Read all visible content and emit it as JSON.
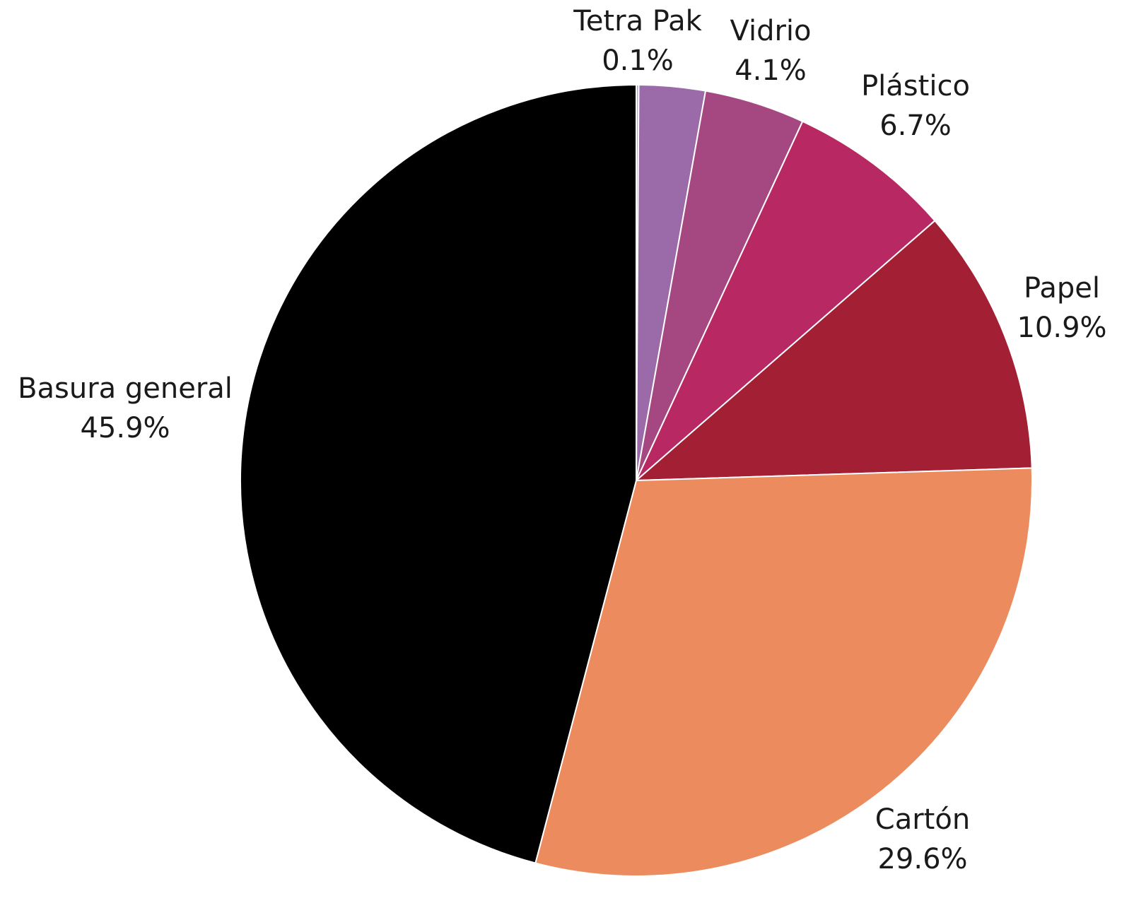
{
  "chart_data": {
    "type": "pie",
    "categories": [
      "Tetra Pak",
      null,
      "Vidrio",
      "Plástico",
      "Papel",
      "Cartón",
      "Basura general"
    ],
    "values": [
      0.1,
      2.7,
      4.1,
      6.7,
      10.9,
      29.6,
      45.9
    ],
    "value_labels": [
      "0.1%",
      null,
      "4.1%",
      "6.7%",
      "10.9%",
      "29.6%",
      "45.9%"
    ],
    "colors": [
      "#a7a3e6",
      "#9b6aa8",
      "#a54882",
      "#b82862",
      "#a21f34",
      "#ec8c5e",
      "#000000"
    ]
  }
}
